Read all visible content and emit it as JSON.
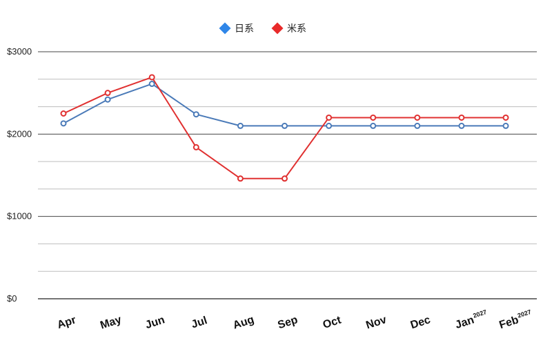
{
  "chart_data": {
    "type": "line",
    "title": "",
    "xlabel": "",
    "ylabel": "",
    "categories": [
      "Apr",
      "May",
      "Jun",
      "Jul",
      "Aug",
      "Sep",
      "Oct",
      "Nov",
      "Dec",
      "Jan",
      "Feb"
    ],
    "category_superscripts": [
      "",
      "",
      "",
      "",
      "",
      "",
      "",
      "",
      "",
      "2027",
      "2027"
    ],
    "series": [
      {
        "name": "日系",
        "color": "#4a7ab8",
        "values": [
          2130,
          2420,
          2610,
          2240,
          2100,
          2100,
          2100,
          2100,
          2100,
          2100,
          2100
        ]
      },
      {
        "name": "米系",
        "color": "#e03030",
        "values": [
          2250,
          2500,
          2690,
          1840,
          1460,
          1460,
          2200,
          2200,
          2200,
          2200,
          2200
        ]
      }
    ],
    "ylim": [
      0,
      3000
    ],
    "y_ticks": [
      {
        "value": 0,
        "label": "$0"
      },
      {
        "value": 1000,
        "label": "$1000"
      },
      {
        "value": 2000,
        "label": "$2000"
      },
      {
        "value": 3000,
        "label": "$3000"
      }
    ],
    "minor_gridlines": [
      333,
      667,
      1333,
      1667,
      2333,
      2667
    ],
    "legend_position": "top-center",
    "legend_marker_colors": [
      "#2f86e8",
      "#e82a2a"
    ],
    "grid": true
  }
}
